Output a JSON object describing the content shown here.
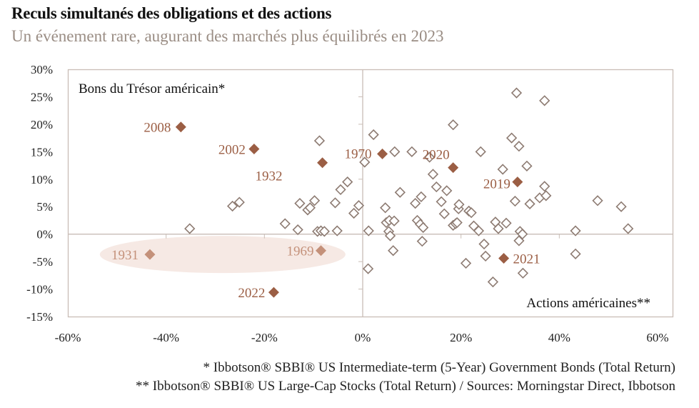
{
  "header": {
    "title": "Reculs simultanés des obligations et des actions",
    "subtitle": "Un événement rare, augurant des marchés plus équilibrés en 2023"
  },
  "footnotes": [
    "* Ibbotson® SBBI® US Intermediate-term (5-Year) Government Bonds (Total Return)",
    "** Ibbotson® SBBI® US Large-Cap Stocks (Total Return) / Sources: Morningstar Direct, Ibbotson"
  ],
  "colors": {
    "highlight": "#9b5e44",
    "highlight_light": "#c4917a",
    "hollow": "#8d7b72",
    "ellipse": "#f6e9e4",
    "axis": "#c9bdb6"
  },
  "chart_data": {
    "type": "scatter",
    "title": "Reculs simultanés des obligations et des actions",
    "xlabel": "Actions américaines**",
    "ylabel": "Bons du Trésor américain*",
    "xlim": [
      -60,
      60
    ],
    "ylim": [
      -15,
      30
    ],
    "x_ticks": [
      "-60%",
      "-40%",
      "-20%",
      "0%",
      "20%",
      "40%",
      "60%"
    ],
    "y_ticks": [
      "30%",
      "25%",
      "20%",
      "15%",
      "10%",
      "5%",
      "0%",
      "-5%",
      "-10%",
      "-15%"
    ],
    "highlighted": [
      {
        "label": "2008",
        "x": -37,
        "y": 19.5,
        "style": "dark"
      },
      {
        "label": "2002",
        "x": -22.1,
        "y": 15.5,
        "style": "dark"
      },
      {
        "label": "1932",
        "x": -8.2,
        "y": 13,
        "style": "dark"
      },
      {
        "label": "1970",
        "x": 4,
        "y": 14.6,
        "style": "dark"
      },
      {
        "label": "2020",
        "x": 18.4,
        "y": 12.1,
        "style": "dark"
      },
      {
        "label": "2019",
        "x": 31.5,
        "y": 9.5,
        "style": "dark"
      },
      {
        "label": "2021",
        "x": 28.7,
        "y": -4.4,
        "style": "dark"
      },
      {
        "label": "2022",
        "x": -18.1,
        "y": -10.6,
        "style": "dark"
      },
      {
        "label": "1931",
        "x": -43.3,
        "y": -3.7,
        "style": "light"
      },
      {
        "label": "1969",
        "x": -8.5,
        "y": -3,
        "style": "light"
      }
    ],
    "other_points": [
      [
        -35.2,
        1
      ],
      [
        -26.5,
        5.1
      ],
      [
        -25.1,
        5.8
      ],
      [
        -15.8,
        1.9
      ],
      [
        -13.2,
        0.8
      ],
      [
        -12.8,
        5.6
      ],
      [
        -11.2,
        4.4
      ],
      [
        -10.7,
        4.8
      ],
      [
        -9.8,
        6.1
      ],
      [
        -9.2,
        0.5
      ],
      [
        -8.5,
        0.6
      ],
      [
        -7.8,
        0.5
      ],
      [
        -5.6,
        5.7
      ],
      [
        -5.2,
        0.6
      ],
      [
        -8.8,
        17
      ],
      [
        -4.5,
        8.1
      ],
      [
        -3.1,
        9.5
      ],
      [
        -1.8,
        3.8
      ],
      [
        -0.8,
        5.2
      ],
      [
        0.4,
        13.1
      ],
      [
        1.2,
        0.6
      ],
      [
        1.1,
        -6.3
      ],
      [
        2.2,
        18.1
      ],
      [
        6.5,
        15
      ],
      [
        4.6,
        4.8
      ],
      [
        4.8,
        2.1
      ],
      [
        5.3,
        0.5
      ],
      [
        5.4,
        2.5
      ],
      [
        5.6,
        -0.3
      ],
      [
        6.4,
        2.4
      ],
      [
        6.2,
        -3
      ],
      [
        7.6,
        7.6
      ],
      [
        10,
        15
      ],
      [
        10.7,
        5.6
      ],
      [
        11.1,
        2.5
      ],
      [
        11.7,
        1.8
      ],
      [
        11.9,
        6.8
      ],
      [
        12.3,
        1.2
      ],
      [
        12.1,
        -1.3
      ],
      [
        13.6,
        14
      ],
      [
        14.3,
        10.9
      ],
      [
        15,
        8.6
      ],
      [
        16,
        5.9
      ],
      [
        16.6,
        3.7
      ],
      [
        17.1,
        7.9
      ],
      [
        18.4,
        19.9
      ],
      [
        18.4,
        1.6
      ],
      [
        18.9,
        1.9
      ],
      [
        19.2,
        2.1
      ],
      [
        19.5,
        4.6
      ],
      [
        19.6,
        5.4
      ],
      [
        21.6,
        4.2
      ],
      [
        22.1,
        3.9
      ],
      [
        21,
        -5.3
      ],
      [
        22.6,
        1.5
      ],
      [
        23.6,
        0.6
      ],
      [
        24,
        15
      ],
      [
        24.7,
        -1.8
      ],
      [
        25,
        -4
      ],
      [
        27,
        2.2
      ],
      [
        27.6,
        1
      ],
      [
        28.5,
        11.8
      ],
      [
        29.2,
        2
      ],
      [
        26.5,
        -8.7
      ],
      [
        30.3,
        17.5
      ],
      [
        31,
        6
      ],
      [
        31.3,
        25.7
      ],
      [
        31.8,
        16
      ],
      [
        32,
        0.5
      ],
      [
        31.8,
        -1.2
      ],
      [
        32.5,
        0
      ],
      [
        32.6,
        -7.1
      ],
      [
        33.4,
        12.4
      ],
      [
        34,
        5.5
      ],
      [
        36,
        6.6
      ],
      [
        37,
        24.3
      ],
      [
        37,
        8.7
      ],
      [
        37.3,
        7
      ],
      [
        43.3,
        0.6
      ],
      [
        43.3,
        -3.6
      ],
      [
        47.8,
        6.1
      ],
      [
        52.6,
        5
      ],
      [
        54,
        1
      ]
    ]
  }
}
